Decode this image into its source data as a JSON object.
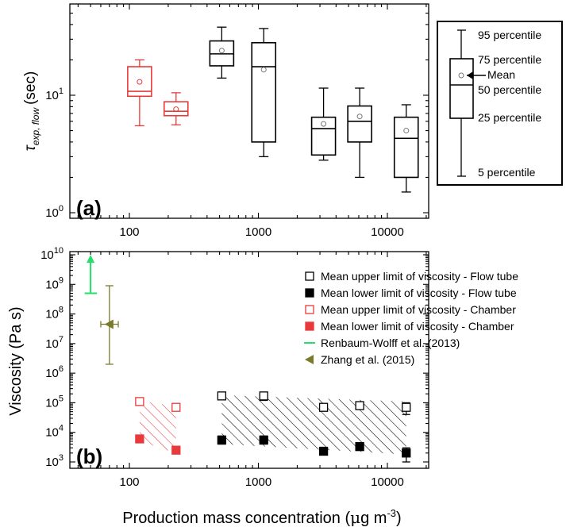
{
  "chart_data": [
    {
      "panel": "(a)",
      "type": "box",
      "ylabel_main": "τ",
      "ylabel_sub": "exp, flow",
      "ylabel_unit": "(sec)",
      "yscale": "log",
      "ylim": [
        1,
        40
      ],
      "xscale": "log",
      "xlim": [
        32,
        25000
      ],
      "x_tick_labels": [
        {
          "value": 100,
          "label": "100"
        },
        {
          "value": 1000,
          "label": "1000"
        },
        {
          "value": 10000,
          "label": "10000"
        }
      ],
      "y_tick_labels": [
        {
          "value": 1,
          "base": "10",
          "exp": "0"
        },
        {
          "value": 10,
          "base": "10",
          "exp": "1"
        }
      ],
      "boxes": [
        {
          "x": 120,
          "color": "#e83a3a",
          "p5": 5.5,
          "p25": 9.8,
          "median": 10.8,
          "p75": 17.5,
          "p95": 20,
          "mean": 13
        },
        {
          "x": 230,
          "color": "#e83a3a",
          "p5": 5.6,
          "p25": 6.7,
          "median": 7.3,
          "p75": 8.8,
          "p95": 10.5,
          "mean": 7.6
        },
        {
          "x": 520,
          "color": "#000000",
          "p5": 14,
          "p25": 17.8,
          "median": 22.5,
          "p75": 29,
          "p95": 38,
          "mean": 24
        },
        {
          "x": 1100,
          "color": "#000000",
          "p5": 3.0,
          "p25": 4.0,
          "median": 17.5,
          "p75": 28,
          "p95": 37,
          "mean": 16.5
        },
        {
          "x": 3200,
          "color": "#000000",
          "p5": 2.8,
          "p25": 3.1,
          "median": 5.2,
          "p75": 6.5,
          "p95": 11.5,
          "mean": 5.7
        },
        {
          "x": 6100,
          "color": "#000000",
          "p5": 2.0,
          "p25": 4.0,
          "median": 6.0,
          "p75": 8.1,
          "p95": 11.5,
          "mean": 6.6
        },
        {
          "x": 14000,
          "color": "#000000",
          "p5": 1.5,
          "p25": 2.0,
          "median": 4.3,
          "p75": 6.5,
          "p95": 8.3,
          "mean": 5.0
        }
      ],
      "legend": {
        "labels": [
          "95 percentile",
          "75 percentile",
          "Mean",
          "50 percentile",
          "25 percentile",
          "5 percentile"
        ]
      }
    },
    {
      "panel": "(b)",
      "type": "scatter",
      "ylabel": "Viscosity (Pa s)",
      "yscale": "log",
      "ylim": [
        1000,
        10000000000
      ],
      "xscale": "log",
      "xlim": [
        32,
        25000
      ],
      "x_tick_labels": [
        {
          "value": 100,
          "label": "100"
        },
        {
          "value": 1000,
          "label": "1000"
        },
        {
          "value": 10000,
          "label": "10000"
        }
      ],
      "y_tick_labels": [
        {
          "value": 1000,
          "base": "10",
          "exp": "3"
        },
        {
          "value": 10000,
          "base": "10",
          "exp": "4"
        },
        {
          "value": 100000,
          "base": "10",
          "exp": "5"
        },
        {
          "value": 1000000,
          "base": "10",
          "exp": "6"
        },
        {
          "value": 10000000,
          "base": "10",
          "exp": "7"
        },
        {
          "value": 100000000,
          "base": "10",
          "exp": "8"
        },
        {
          "value": 1000000000,
          "base": "10",
          "exp": "9"
        },
        {
          "value": 10000000000,
          "base": "10",
          "exp": "10"
        }
      ],
      "series": [
        {
          "name": "Mean upper limit of viscosity - Flow tube",
          "marker": "open-square",
          "color": "#000000",
          "points": [
            {
              "x": 520,
              "y": 170000,
              "ylo": 140000,
              "yhi": 200000
            },
            {
              "x": 1100,
              "y": 170000,
              "ylo": 120000,
              "yhi": 210000
            },
            {
              "x": 3200,
              "y": 70000,
              "ylo": 55000,
              "yhi": 85000
            },
            {
              "x": 6100,
              "y": 80000,
              "ylo": 60000,
              "yhi": 100000
            },
            {
              "x": 14000,
              "y": 70000,
              "ylo": 40000,
              "yhi": 100000
            }
          ]
        },
        {
          "name": "Mean lower limit of viscosity - Flow tube",
          "marker": "filled-square",
          "color": "#000000",
          "points": [
            {
              "x": 520,
              "y": 5500,
              "ylo": 4000,
              "yhi": 7500
            },
            {
              "x": 1100,
              "y": 5500,
              "ylo": 4000,
              "yhi": 7500
            },
            {
              "x": 3200,
              "y": 2300,
              "ylo": 2000,
              "yhi": 2600
            },
            {
              "x": 6100,
              "y": 3300,
              "ylo": 2500,
              "yhi": 4300
            },
            {
              "x": 14000,
              "y": 2000,
              "ylo": 1000,
              "yhi": 3000
            }
          ]
        },
        {
          "name": "Mean upper limit of viscosity - Chamber",
          "marker": "open-square",
          "color": "#e83a3a",
          "points": [
            {
              "x": 120,
              "y": 110000,
              "ylo": 95000,
              "yhi": 130000
            },
            {
              "x": 230,
              "y": 70000,
              "ylo": 55000,
              "yhi": 90000
            }
          ]
        },
        {
          "name": "Mean lower limit of viscosity - Chamber",
          "marker": "filled-square",
          "color": "#e83a3a",
          "points": [
            {
              "x": 120,
              "y": 6000,
              "ylo": 5000,
              "yhi": 7500
            },
            {
              "x": 230,
              "y": 2500,
              "ylo": 2000,
              "yhi": 3200
            }
          ]
        },
        {
          "name": "Renbaum-Wolff et al. (2013)",
          "marker": "arrow-up",
          "color": "#22e06a",
          "points": [
            {
              "x": 50,
              "y": 500000000,
              "y_to": 10000000000,
              "x_lo": 45,
              "x_hi": 56
            }
          ]
        },
        {
          "name": "Zhang et al. (2015)",
          "marker": "triangle-left",
          "color": "#7a7a2a",
          "points": [
            {
              "x": 70,
              "y": 45000000,
              "ylo": 2000000,
              "yhi": 900000000,
              "x_lo": 60,
              "x_hi": 82
            }
          ]
        }
      ],
      "hatched_regions": [
        {
          "color": "#e83a3a",
          "x_from": 120,
          "x_to": 230,
          "y_from_low": 5000,
          "y_from_high": 120000,
          "y_to_low": 2000,
          "y_to_high": 75000
        },
        {
          "color": "#000000",
          "x_from": 520,
          "x_to": 14000,
          "y_from_low": 4000,
          "y_from_high": 180000,
          "y_to_low": 1800,
          "y_to_high": 110000
        }
      ]
    }
  ],
  "shared": {
    "xlabel_main": "Production mass concentration (",
    "xlabel_mu": "μ",
    "xlabel_unit": "g m",
    "xlabel_exp": "-3",
    "xlabel_close": ")"
  }
}
